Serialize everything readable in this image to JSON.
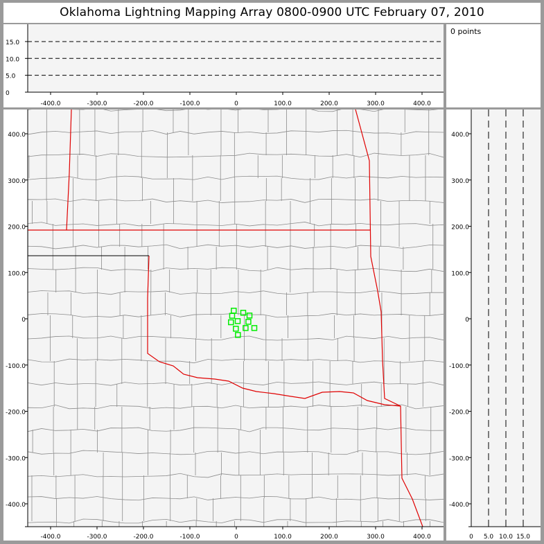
{
  "title": "Oklahoma Lightning Mapping Array   0800-0900 UTC  February 07, 2010",
  "info": {
    "points_label": "0 points"
  },
  "colors": {
    "background": "#9a9a9a",
    "plot_bg": "#f4f4f4",
    "county_lines": "#8c8c8c",
    "state_lines": "#e00000",
    "stations": "#00ee00"
  },
  "chart_data": [
    {
      "type": "line",
      "panel": "altitude-vs-east",
      "xlim": [
        -450,
        450
      ],
      "ylim": [
        0,
        20
      ],
      "xticks": [
        "-400.0",
        "-300.0",
        "-200.0",
        "-100.0",
        "0",
        "100.0",
        "200.0",
        "300.0",
        "400.0"
      ],
      "yticks": [
        "0",
        "5.0",
        "10.0",
        "15.0"
      ],
      "dashed_reference_lines": [
        5,
        10,
        15
      ],
      "series": []
    },
    {
      "type": "scatter",
      "panel": "plan-view-map",
      "xlim": [
        -450,
        450
      ],
      "ylim": [
        -450,
        450
      ],
      "xticks": [
        "-400.0",
        "-300.0",
        "-200.0",
        "-100.0",
        "0",
        "100.0",
        "200.0",
        "300.0",
        "400.0"
      ],
      "yticks": [
        "-400.0",
        "-300.0",
        "-200.0",
        "-100.0",
        "0",
        "100.0",
        "200.0",
        "300.0",
        "400.0"
      ],
      "stations": {
        "marker": "square",
        "x": [
          -5.5,
          14.9,
          -9,
          28.4,
          -11.5,
          3,
          26,
          -1,
          20,
          38.8,
          3.5
        ],
        "y": [
          17.5,
          13,
          6.5,
          7,
          -7.5,
          -5,
          -6.5,
          -21.5,
          -20,
          -20,
          -35
        ]
      }
    },
    {
      "type": "line",
      "panel": "north-vs-altitude",
      "xlim": [
        0,
        20
      ],
      "ylim": [
        -450,
        450
      ],
      "xticks": [
        "0",
        "5.0",
        "10.0",
        "15.0"
      ],
      "dashed_reference_lines": [
        5,
        10,
        15
      ],
      "series": []
    }
  ]
}
